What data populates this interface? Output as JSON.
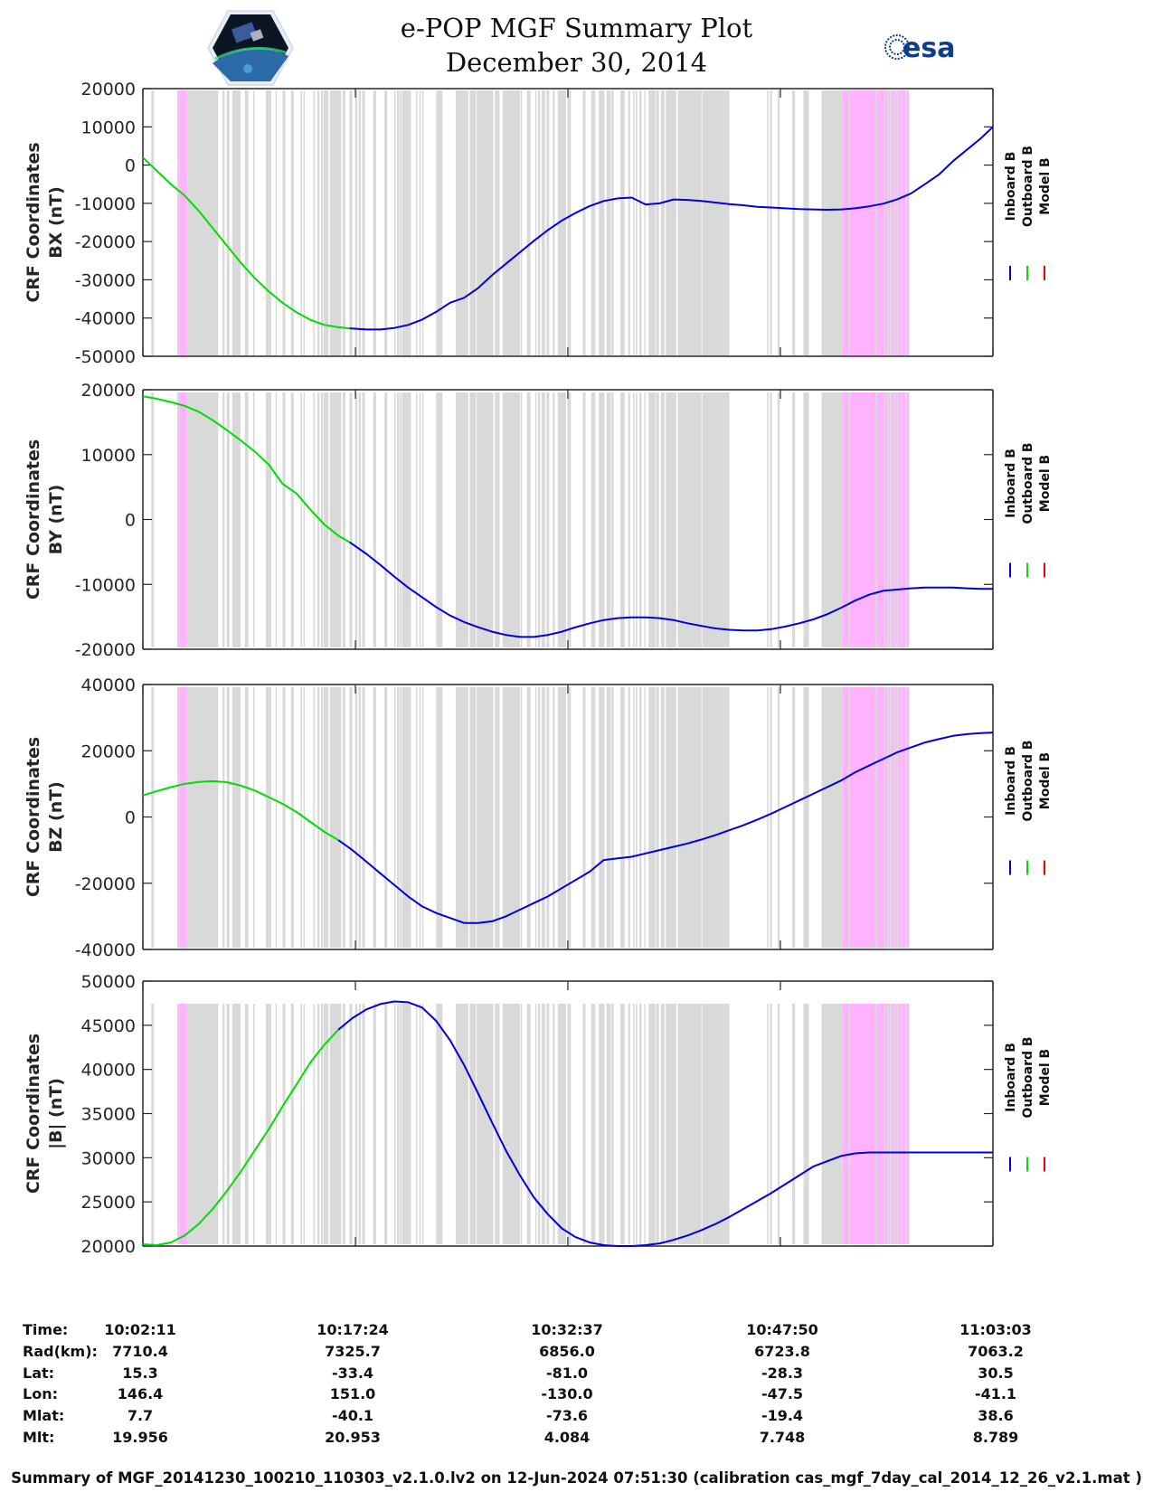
{
  "header": {
    "title": "e-POP MGF Summary Plot",
    "date": "December 30, 2014",
    "left_logo": "cassiope-mission-logo",
    "right_logo": "esa-logo",
    "right_logo_text": "esa"
  },
  "colors": {
    "inboard": "#0000dd",
    "outboard": "#00dd00",
    "model": "#ee0000",
    "gap_gray": "#d9d9d9",
    "highlight_pink": "#ffb3ff"
  },
  "legend": [
    {
      "label": "Inboard B",
      "color": "#0000dd"
    },
    {
      "label": "Outboard B",
      "color": "#00dd00"
    },
    {
      "label": "Model B",
      "color": "#ee0000"
    }
  ],
  "chart_data": [
    {
      "type": "line",
      "ylabel_line1": "CRF Coordinates",
      "ylabel_line2": "BX (nT)",
      "ylim": [
        -50000,
        20000
      ],
      "yticks": [
        "20000",
        "10000",
        "0",
        "-10000",
        "-20000",
        "-30000",
        "-40000",
        "-50000"
      ],
      "ytick_values": [
        20000,
        10000,
        0,
        -10000,
        -20000,
        -30000,
        -40000,
        -50000
      ],
      "series": [
        {
          "name": "Outboard B",
          "x_min": [
            0,
            1,
            2,
            3,
            4,
            5,
            6,
            7,
            8,
            9,
            10,
            11,
            12,
            13,
            14,
            14.8
          ],
          "values": [
            2000,
            -1500,
            -5000,
            -8000,
            -12000,
            -16500,
            -21000,
            -25500,
            -29500,
            -33000,
            -36000,
            -38500,
            -40500,
            -41800,
            -42400,
            -42700
          ]
        },
        {
          "name": "Inboard B",
          "x_min": [
            14.8,
            16,
            17,
            18,
            19,
            20,
            21,
            22,
            23,
            24,
            25,
            26,
            27,
            28,
            29,
            30,
            31,
            32,
            33,
            34,
            35,
            36,
            37,
            38,
            39,
            40,
            41,
            42,
            43,
            44,
            45,
            46,
            47,
            48,
            49,
            50,
            51,
            52,
            53,
            54,
            55,
            56,
            57,
            58,
            59,
            60,
            60.87
          ],
          "values": [
            -42700,
            -43000,
            -43000,
            -42600,
            -41800,
            -40400,
            -38400,
            -36000,
            -34700,
            -32200,
            -28800,
            -25800,
            -22800,
            -19800,
            -17000,
            -14500,
            -12500,
            -10700,
            -9400,
            -8700,
            -8500,
            -10300,
            -10000,
            -9000,
            -9100,
            -9400,
            -9800,
            -10200,
            -10500,
            -10900,
            -11100,
            -11300,
            -11500,
            -11600,
            -11700,
            -11600,
            -11300,
            -10800,
            -10100,
            -9000,
            -7400,
            -5000,
            -2500,
            1000,
            4000,
            7000,
            10000
          ]
        },
        {
          "name": "Model B",
          "x_min": [],
          "values": []
        }
      ]
    },
    {
      "type": "line",
      "ylabel_line1": "CRF Coordinates",
      "ylabel_line2": "BY (nT)",
      "ylim": [
        -20000,
        20000
      ],
      "yticks": [
        "20000",
        "10000",
        "0",
        "-10000",
        "-20000"
      ],
      "ytick_values": [
        20000,
        10000,
        0,
        -10000,
        -20000
      ],
      "series": [
        {
          "name": "Outboard B",
          "x_min": [
            0,
            1,
            2,
            3,
            4,
            5,
            6,
            7,
            8,
            9,
            10,
            11,
            12,
            13,
            14,
            14.8
          ],
          "values": [
            19000,
            18600,
            18100,
            17500,
            16600,
            15300,
            13800,
            12200,
            10500,
            8500,
            5500,
            4000,
            1500,
            -800,
            -2500,
            -3500
          ]
        },
        {
          "name": "Inboard B",
          "x_min": [
            14.8,
            16,
            17,
            18,
            19,
            20,
            21,
            22,
            23,
            24,
            25,
            26,
            27,
            28,
            29,
            30,
            31,
            32,
            33,
            34,
            35,
            36,
            37,
            38,
            39,
            40,
            41,
            42,
            43,
            44,
            45,
            46,
            47,
            48,
            49,
            50,
            51,
            52,
            53,
            54,
            55,
            56,
            57,
            58,
            59,
            60,
            60.87
          ],
          "values": [
            -3500,
            -5300,
            -7000,
            -8800,
            -10500,
            -12000,
            -13500,
            -14800,
            -15800,
            -16600,
            -17300,
            -17800,
            -18100,
            -18100,
            -17800,
            -17300,
            -16600,
            -16000,
            -15500,
            -15200,
            -15100,
            -15100,
            -15200,
            -15500,
            -16000,
            -16400,
            -16800,
            -17000,
            -17100,
            -17100,
            -16900,
            -16500,
            -16000,
            -15400,
            -14600,
            -13600,
            -12500,
            -11600,
            -11000,
            -10800,
            -10600,
            -10500,
            -10500,
            -10500,
            -10600,
            -10700,
            -10700
          ]
        },
        {
          "name": "Model B",
          "x_min": [],
          "values": []
        }
      ]
    },
    {
      "type": "line",
      "ylabel_line1": "CRF Coordinates",
      "ylabel_line2": "BZ (nT)",
      "ylim": [
        -40000,
        40000
      ],
      "yticks": [
        "40000",
        "20000",
        "0",
        "-20000",
        "-40000"
      ],
      "ytick_values": [
        40000,
        20000,
        0,
        -20000,
        -40000
      ],
      "series": [
        {
          "name": "Outboard B",
          "x_min": [
            0,
            1,
            2,
            3,
            4,
            5,
            6,
            7,
            8,
            9,
            10,
            11,
            12,
            13,
            14
          ],
          "values": [
            6500,
            7800,
            9000,
            10000,
            10600,
            10800,
            10500,
            9500,
            8000,
            6000,
            4000,
            1500,
            -1500,
            -4500,
            -7000
          ]
        },
        {
          "name": "Inboard B",
          "x_min": [
            14,
            15,
            16,
            17,
            18,
            19,
            20,
            21,
            22,
            23,
            24,
            25,
            26,
            27,
            28,
            29,
            30,
            31,
            32,
            33,
            34,
            35,
            36,
            37,
            38,
            39,
            40,
            41,
            42,
            43,
            44,
            45,
            46,
            47,
            48,
            49,
            50,
            51,
            52,
            53,
            54,
            55,
            56,
            57,
            58,
            59,
            60,
            60.87
          ],
          "values": [
            -7000,
            -10000,
            -13500,
            -17000,
            -20500,
            -24000,
            -27000,
            -29000,
            -30500,
            -32000,
            -32000,
            -31500,
            -30000,
            -28000,
            -26000,
            -24000,
            -21500,
            -19000,
            -16500,
            -13000,
            -12500,
            -12000,
            -11000,
            -10000,
            -9000,
            -8000,
            -6800,
            -5500,
            -4000,
            -2500,
            -800,
            1000,
            3000,
            5000,
            7000,
            9000,
            11000,
            13500,
            15500,
            17500,
            19500,
            21000,
            22500,
            23500,
            24500,
            25000,
            25300,
            25500
          ]
        },
        {
          "name": "Model B",
          "x_min": [],
          "values": []
        }
      ]
    },
    {
      "type": "line",
      "ylabel_line1": "CRF Coordinates",
      "ylabel_line2": "|B| (nT)",
      "ylim": [
        20000,
        50000
      ],
      "yticks": [
        "50000",
        "45000",
        "40000",
        "35000",
        "30000",
        "25000",
        "20000"
      ],
      "ytick_values": [
        50000,
        45000,
        40000,
        35000,
        30000,
        25000,
        20000
      ],
      "series": [
        {
          "name": "Outboard B",
          "x_min": [
            0,
            1,
            2,
            3,
            4,
            5,
            6,
            7,
            8,
            9,
            10,
            11,
            12,
            13,
            14
          ],
          "values": [
            20200,
            20100,
            20400,
            21200,
            22500,
            24200,
            26200,
            28400,
            30800,
            33200,
            35800,
            38300,
            40800,
            42800,
            44500
          ]
        },
        {
          "name": "Inboard B",
          "x_min": [
            14,
            15,
            16,
            17,
            18,
            19,
            20,
            21,
            22,
            23,
            24,
            25,
            26,
            27,
            28,
            29,
            30,
            31,
            32,
            33,
            34,
            35,
            36,
            37,
            38,
            39,
            40,
            41,
            42,
            43,
            44,
            45,
            46,
            47,
            48,
            49,
            50,
            51,
            52,
            53,
            54,
            55,
            56,
            57,
            58,
            59,
            60,
            60.87
          ],
          "values": [
            44500,
            45800,
            46800,
            47400,
            47700,
            47600,
            47000,
            45500,
            43300,
            40500,
            37300,
            34000,
            30800,
            28000,
            25500,
            23600,
            22000,
            21000,
            20400,
            20100,
            20000,
            20000,
            20100,
            20300,
            20700,
            21200,
            21800,
            22500,
            23300,
            24200,
            25100,
            26000,
            27000,
            28000,
            29000,
            29600,
            30200,
            30500,
            30600,
            30600,
            30600,
            30600,
            30600,
            30600,
            30600,
            30600,
            30600,
            30600
          ]
        },
        {
          "name": "Model B",
          "x_min": [],
          "values": []
        }
      ]
    }
  ],
  "x_axis": {
    "range_min": [
      0,
      60.87
    ],
    "tick_min": [
      0,
      15.22,
      30.43,
      45.65,
      60.87
    ]
  },
  "shading": {
    "gray_bands_min": [
      [
        0.6,
        0.8
      ],
      [
        2.45,
        2.6
      ],
      [
        3.15,
        5.4
      ],
      [
        5.7,
        5.85
      ],
      [
        6.0,
        6.2
      ],
      [
        6.4,
        7.0
      ],
      [
        7.3,
        7.55
      ],
      [
        7.9,
        8.0
      ],
      [
        8.8,
        9.2
      ],
      [
        9.5,
        9.6
      ],
      [
        10.0,
        10.2
      ],
      [
        10.6,
        10.8
      ],
      [
        11.3,
        11.4
      ],
      [
        11.5,
        11.6
      ],
      [
        12.2,
        12.3
      ],
      [
        12.5,
        12.65
      ],
      [
        12.75,
        12.9
      ],
      [
        12.95,
        13.3
      ],
      [
        13.4,
        14.2
      ],
      [
        14.3,
        14.5
      ],
      [
        14.8,
        15.0
      ],
      [
        15.2,
        15.35
      ],
      [
        15.45,
        15.6
      ],
      [
        15.7,
        15.9
      ],
      [
        16.5,
        16.7
      ],
      [
        17.3,
        17.5
      ],
      [
        18.0,
        18.1
      ],
      [
        18.2,
        18.35
      ],
      [
        18.4,
        18.5
      ],
      [
        18.55,
        19.2
      ],
      [
        19.55,
        19.65
      ],
      [
        19.8,
        19.9
      ],
      [
        20.0,
        20.1
      ],
      [
        21.0,
        21.45
      ],
      [
        22.4,
        23.3
      ],
      [
        23.4,
        23.85
      ],
      [
        23.9,
        25.1
      ],
      [
        25.2,
        25.55
      ],
      [
        25.75,
        27.0
      ],
      [
        27.05,
        27.15
      ],
      [
        27.5,
        27.75
      ],
      [
        28.1,
        28.2
      ],
      [
        28.3,
        28.45
      ],
      [
        28.55,
        28.8
      ],
      [
        28.9,
        29.1
      ],
      [
        29.35,
        29.5
      ],
      [
        29.7,
        30.3
      ],
      [
        30.4,
        30.65
      ],
      [
        31.5,
        31.7
      ],
      [
        32.1,
        32.4
      ],
      [
        32.65,
        33.05
      ],
      [
        33.2,
        33.5
      ],
      [
        33.55,
        33.7
      ],
      [
        34.2,
        34.5
      ],
      [
        34.75,
        34.9
      ],
      [
        35.1,
        35.2
      ],
      [
        35.3,
        35.4
      ],
      [
        35.55,
        35.7
      ],
      [
        35.9,
        36.0
      ],
      [
        36.2,
        36.7
      ],
      [
        36.75,
        36.95
      ],
      [
        37.1,
        37.35
      ],
      [
        37.45,
        38.2
      ],
      [
        38.3,
        40.0
      ],
      [
        40.05,
        42.0
      ],
      [
        44.7,
        44.8
      ],
      [
        44.9,
        45.05
      ],
      [
        45.45,
        45.6
      ],
      [
        46.5,
        46.7
      ],
      [
        47.3,
        47.7
      ],
      [
        48.6,
        50.1
      ]
    ],
    "pink_bands_min": [
      [
        2.6,
        3.15
      ],
      [
        50.1,
        50.55
      ],
      [
        50.6,
        52.45
      ],
      [
        52.55,
        53.1
      ],
      [
        53.15,
        53.3
      ],
      [
        53.4,
        53.5
      ],
      [
        53.65,
        53.8
      ],
      [
        53.9,
        54.0
      ],
      [
        54.1,
        54.3
      ],
      [
        54.35,
        54.6
      ],
      [
        54.7,
        54.85
      ]
    ],
    "bx_extra_pink_min": [
      [
        51.6,
        54.0
      ],
      [
        54.0,
        54.3
      ],
      [
        54.4,
        54.9
      ]
    ]
  },
  "info_table": {
    "row_labels": [
      "Time:",
      "Rad(km):",
      "Lat:",
      "Lon:",
      "Mlat:",
      "Mlt:"
    ],
    "columns": [
      [
        "10:02:11",
        "7710.4",
        "15.3",
        "146.4",
        "7.7",
        "19.956"
      ],
      [
        "10:17:24",
        "7325.7",
        "-33.4",
        "151.0",
        "-40.1",
        "20.953"
      ],
      [
        "10:32:37",
        "6856.0",
        "-81.0",
        "-130.0",
        "-73.6",
        "4.084"
      ],
      [
        "10:47:50",
        "6723.8",
        "-28.3",
        "-47.5",
        "-19.4",
        "7.748"
      ],
      [
        "11:03:03",
        "7063.2",
        "30.5",
        "-41.1",
        "38.6",
        "8.789"
      ]
    ]
  },
  "footer": "Summary of MGF_20141230_100210_110303_v2.1.0.lv2 on 12-Jun-2024 07:51:30 (calibration cas_mgf_7day_cal_2014_12_26_v2.1.mat )"
}
